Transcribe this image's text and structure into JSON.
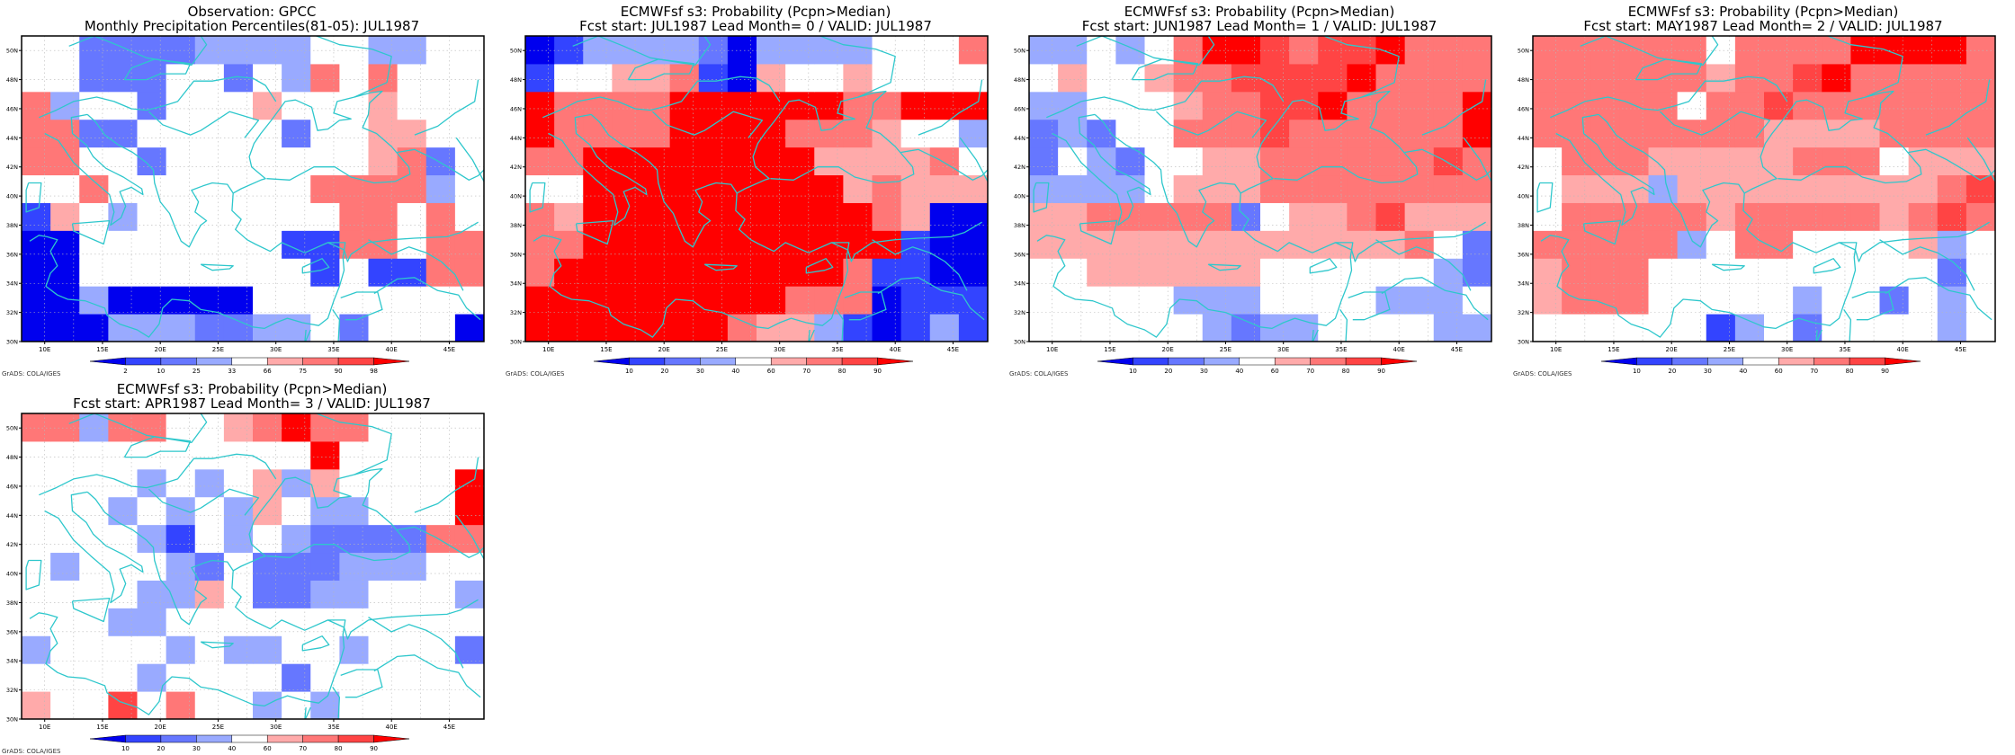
{
  "chart_data": [
    {
      "type": "heatmap",
      "title_line1": "Observation: GPCC",
      "title_line2": "Monthly Precipitation Percentiles(81-05): JUL1987",
      "x_ticks": [
        "10E",
        "15E",
        "20E",
        "25E",
        "30E",
        "35E",
        "40E",
        "45E"
      ],
      "y_ticks": [
        "30N",
        "32N",
        "34N",
        "36N",
        "38N",
        "40N",
        "42N",
        "44N",
        "46N",
        "48N",
        "50N"
      ],
      "colorbar": {
        "colors": [
          "#0000ee",
          "#3344ff",
          "#6677ff",
          "#99aaff",
          "#ffffff",
          "#ffaaaa",
          "#ff7777",
          "#ff4444",
          "#ff0000"
        ],
        "labels": [
          "2",
          "10",
          "25",
          "33",
          "66",
          "75",
          "90",
          "98"
        ]
      },
      "credit": "GrADS: COLA/IGES",
      "grid_values": [
        [
          0,
          0,
          0,
          3,
          3,
          3,
          2,
          2,
          3,
          3,
          4,
          2,
          4,
          4,
          4,
          0
        ],
        [
          0,
          0,
          3,
          0,
          0,
          0,
          0,
          0,
          4,
          4,
          4,
          4,
          4,
          4,
          4,
          4
        ],
        [
          0,
          0,
          4,
          4,
          4,
          4,
          4,
          4,
          4,
          4,
          1,
          4,
          1,
          1,
          6,
          6
        ],
        [
          0,
          0,
          4,
          4,
          4,
          4,
          4,
          4,
          4,
          1,
          1,
          6,
          6,
          4,
          6,
          6
        ],
        [
          1,
          5,
          4,
          3,
          4,
          4,
          4,
          4,
          4,
          4,
          4,
          6,
          6,
          4,
          6,
          4
        ],
        [
          4,
          4,
          6,
          4,
          4,
          4,
          4,
          4,
          4,
          4,
          6,
          6,
          6,
          6,
          3,
          4
        ],
        [
          6,
          6,
          4,
          4,
          2,
          4,
          4,
          4,
          4,
          4,
          4,
          4,
          5,
          6,
          2,
          4
        ],
        [
          6,
          6,
          2,
          2,
          4,
          4,
          4,
          4,
          4,
          2,
          4,
          4,
          5,
          5,
          4,
          4
        ],
        [
          6,
          3,
          4,
          4,
          2,
          4,
          4,
          4,
          5,
          4,
          4,
          4,
          5,
          4,
          4,
          4
        ],
        [
          4,
          4,
          2,
          2,
          2,
          4,
          4,
          2,
          4,
          3,
          6,
          4,
          6,
          4,
          4,
          4
        ],
        [
          4,
          4,
          2,
          2,
          2,
          2,
          3,
          3,
          3,
          3,
          4,
          4,
          3,
          3,
          4,
          4
        ]
      ]
    },
    {
      "type": "heatmap",
      "title_line1": "ECMWFsf s3: Probability (Pcpn>Median)",
      "title_line2": "Fcst start: JUL1987   Lead Month= 0 / VALID: JUL1987",
      "x_ticks": [
        "10E",
        "15E",
        "20E",
        "25E",
        "30E",
        "35E",
        "40E",
        "45E"
      ],
      "y_ticks": [
        "30N",
        "32N",
        "34N",
        "36N",
        "38N",
        "40N",
        "42N",
        "44N",
        "46N",
        "48N",
        "50N"
      ],
      "colorbar": {
        "colors": [
          "#0000ee",
          "#3344ff",
          "#6677ff",
          "#99aaff",
          "#ffffff",
          "#ffaaaa",
          "#ff7777",
          "#ff4444",
          "#ff0000"
        ],
        "labels": [
          "10",
          "20",
          "30",
          "40",
          "60",
          "70",
          "80",
          "90"
        ]
      },
      "credit": "GrADS: COLA/IGES",
      "grid_values": [
        [
          8,
          8,
          8,
          8,
          8,
          8,
          8,
          6,
          5,
          5,
          3,
          1,
          0,
          1,
          3,
          1
        ],
        [
          8,
          8,
          8,
          8,
          8,
          8,
          8,
          8,
          8,
          6,
          6,
          6,
          0,
          1,
          1,
          1
        ],
        [
          6,
          8,
          8,
          8,
          8,
          8,
          8,
          8,
          8,
          8,
          8,
          6,
          1,
          1,
          0,
          0
        ],
        [
          6,
          6,
          8,
          8,
          8,
          8,
          8,
          8,
          8,
          8,
          8,
          8,
          8,
          1,
          0,
          0
        ],
        [
          6,
          5,
          8,
          8,
          8,
          8,
          8,
          8,
          8,
          8,
          8,
          8,
          6,
          5,
          0,
          0
        ],
        [
          4,
          4,
          8,
          8,
          8,
          8,
          8,
          8,
          8,
          8,
          8,
          5,
          6,
          5,
          5,
          5
        ],
        [
          6,
          6,
          8,
          8,
          8,
          8,
          8,
          8,
          8,
          8,
          5,
          5,
          5,
          5,
          6,
          4
        ],
        [
          8,
          6,
          6,
          6,
          6,
          8,
          8,
          8,
          8,
          6,
          6,
          6,
          5,
          4,
          4,
          3
        ],
        [
          8,
          6,
          6,
          6,
          6,
          8,
          8,
          8,
          8,
          8,
          8,
          6,
          6,
          8,
          8,
          8
        ],
        [
          1,
          4,
          4,
          5,
          5,
          6,
          1,
          0,
          5,
          4,
          4,
          5,
          4,
          4,
          4,
          4
        ],
        [
          0,
          1,
          3,
          3,
          3,
          3,
          2,
          0,
          3,
          3,
          3,
          3,
          4,
          4,
          4,
          6
        ]
      ]
    },
    {
      "type": "heatmap",
      "title_line1": "ECMWFsf s3: Probability (Pcpn>Median)",
      "title_line2": "Fcst start: JUN1987   Lead Month= 1 / VALID: JUL1987",
      "x_ticks": [
        "10E",
        "15E",
        "20E",
        "25E",
        "30E",
        "35E",
        "40E",
        "45E"
      ],
      "y_ticks": [
        "30N",
        "32N",
        "34N",
        "36N",
        "38N",
        "40N",
        "42N",
        "44N",
        "46N",
        "48N",
        "50N"
      ],
      "colorbar": {
        "colors": [
          "#0000ee",
          "#3344ff",
          "#6677ff",
          "#99aaff",
          "#ffffff",
          "#ffaaaa",
          "#ff7777",
          "#ff4444",
          "#ff0000"
        ],
        "labels": [
          "10",
          "20",
          "30",
          "40",
          "60",
          "70",
          "80",
          "90"
        ]
      },
      "credit": "GrADS: COLA/IGES",
      "grid_values": [
        [
          4,
          4,
          4,
          4,
          4,
          4,
          3,
          2,
          3,
          3,
          4,
          4,
          4,
          4,
          3,
          3
        ],
        [
          4,
          4,
          4,
          4,
          4,
          3,
          3,
          3,
          4,
          4,
          4,
          4,
          3,
          3,
          3,
          4
        ],
        [
          4,
          4,
          5,
          5,
          5,
          5,
          5,
          5,
          4,
          4,
          4,
          4,
          4,
          4,
          3,
          2
        ],
        [
          5,
          5,
          5,
          5,
          5,
          5,
          5,
          5,
          5,
          5,
          5,
          5,
          5,
          6,
          4,
          2
        ],
        [
          5,
          5,
          6,
          6,
          6,
          6,
          6,
          2,
          4,
          5,
          5,
          6,
          7,
          5,
          5,
          5
        ],
        [
          3,
          3,
          3,
          3,
          4,
          5,
          5,
          5,
          6,
          6,
          6,
          6,
          6,
          6,
          6,
          6
        ],
        [
          2,
          4,
          3,
          2,
          4,
          4,
          5,
          5,
          6,
          6,
          6,
          6,
          6,
          6,
          7,
          6
        ],
        [
          2,
          3,
          2,
          4,
          4,
          6,
          6,
          6,
          7,
          6,
          6,
          6,
          6,
          6,
          6,
          8
        ],
        [
          3,
          3,
          4,
          4,
          4,
          5,
          6,
          6,
          7,
          7,
          8,
          6,
          6,
          6,
          6,
          8
        ],
        [
          4,
          5,
          4,
          4,
          5,
          6,
          6,
          7,
          7,
          7,
          7,
          8,
          6,
          6,
          6,
          6
        ],
        [
          3,
          3,
          4,
          3,
          4,
          6,
          8,
          8,
          7,
          6,
          7,
          7,
          8,
          6,
          6,
          6
        ]
      ]
    },
    {
      "type": "heatmap",
      "title_line1": "ECMWFsf s3: Probability (Pcpn>Median)",
      "title_line2": "Fcst start: MAY1987   Lead Month= 2 / VALID: JUL1987",
      "x_ticks": [
        "10E",
        "15E",
        "20E",
        "25E",
        "30E",
        "35E",
        "40E",
        "45E"
      ],
      "y_ticks": [
        "30N",
        "32N",
        "34N",
        "36N",
        "38N",
        "40N",
        "42N",
        "44N",
        "46N",
        "48N",
        "50N"
      ],
      "colorbar": {
        "colors": [
          "#0000ee",
          "#3344ff",
          "#6677ff",
          "#99aaff",
          "#ffffff",
          "#ffaaaa",
          "#ff7777",
          "#ff4444",
          "#ff0000"
        ],
        "labels": [
          "10",
          "20",
          "30",
          "40",
          "60",
          "70",
          "80",
          "90"
        ]
      },
      "credit": "GrADS: COLA/IGES",
      "grid_values": [
        [
          4,
          4,
          4,
          4,
          4,
          4,
          1,
          3,
          4,
          2,
          4,
          4,
          4,
          4,
          3,
          4
        ],
        [
          5,
          6,
          6,
          6,
          4,
          4,
          4,
          4,
          4,
          3,
          4,
          4,
          2,
          4,
          3,
          4
        ],
        [
          5,
          6,
          6,
          6,
          4,
          4,
          4,
          4,
          4,
          4,
          4,
          4,
          4,
          4,
          2,
          4
        ],
        [
          6,
          6,
          6,
          6,
          6,
          3,
          4,
          6,
          6,
          4,
          4,
          4,
          4,
          5,
          3,
          4
        ],
        [
          4,
          6,
          6,
          6,
          6,
          6,
          5,
          6,
          6,
          6,
          6,
          6,
          5,
          6,
          7,
          6
        ],
        [
          4,
          5,
          5,
          5,
          3,
          5,
          5,
          5,
          5,
          5,
          5,
          5,
          5,
          5,
          6,
          7
        ],
        [
          4,
          6,
          6,
          6,
          5,
          5,
          5,
          5,
          5,
          6,
          6,
          6,
          4,
          5,
          5,
          5
        ],
        [
          6,
          6,
          6,
          6,
          6,
          6,
          6,
          6,
          5,
          5,
          5,
          5,
          6,
          6,
          6,
          6
        ],
        [
          6,
          6,
          6,
          6,
          6,
          4,
          6,
          6,
          7,
          6,
          6,
          6,
          6,
          6,
          6,
          6
        ],
        [
          6,
          6,
          6,
          6,
          6,
          6,
          5,
          6,
          6,
          7,
          8,
          6,
          6,
          6,
          6,
          6
        ],
        [
          6,
          6,
          6,
          6,
          6,
          6,
          4,
          6,
          6,
          6,
          6,
          8,
          8,
          8,
          8,
          6
        ]
      ]
    },
    {
      "type": "heatmap",
      "title_line1": "ECMWFsf s3: Probability (Pcpn>Median)",
      "title_line2": "Fcst start: APR1987   Lead Month= 3 / VALID: JUL1987",
      "x_ticks": [
        "10E",
        "15E",
        "20E",
        "25E",
        "30E",
        "35E",
        "40E",
        "45E"
      ],
      "y_ticks": [
        "30N",
        "32N",
        "34N",
        "36N",
        "38N",
        "40N",
        "42N",
        "44N",
        "46N",
        "48N",
        "50N"
      ],
      "colorbar": {
        "colors": [
          "#0000ee",
          "#3344ff",
          "#6677ff",
          "#99aaff",
          "#ffffff",
          "#ffaaaa",
          "#ff7777",
          "#ff4444",
          "#ff0000"
        ],
        "labels": [
          "10",
          "20",
          "30",
          "40",
          "60",
          "70",
          "80",
          "90"
        ]
      },
      "credit": "GrADS: COLA/IGES",
      "grid_values": [
        [
          5,
          4,
          4,
          7,
          4,
          6,
          4,
          4,
          3,
          4,
          3,
          4,
          4,
          4,
          4,
          4
        ],
        [
          4,
          4,
          4,
          4,
          3,
          4,
          4,
          4,
          4,
          2,
          4,
          4,
          4,
          4,
          4,
          4
        ],
        [
          3,
          4,
          4,
          4,
          4,
          3,
          4,
          3,
          3,
          4,
          4,
          3,
          4,
          4,
          4,
          2
        ],
        [
          4,
          4,
          4,
          3,
          3,
          4,
          4,
          4,
          4,
          4,
          4,
          4,
          4,
          4,
          4,
          4
        ],
        [
          4,
          4,
          4,
          4,
          3,
          3,
          5,
          4,
          2,
          2,
          3,
          3,
          4,
          4,
          4,
          3
        ],
        [
          4,
          3,
          4,
          4,
          4,
          3,
          2,
          4,
          2,
          2,
          2,
          3,
          3,
          3,
          4,
          4
        ],
        [
          4,
          4,
          4,
          4,
          3,
          1,
          4,
          3,
          4,
          3,
          2,
          2,
          2,
          2,
          6,
          6
        ],
        [
          4,
          4,
          4,
          3,
          4,
          3,
          4,
          3,
          5,
          4,
          3,
          3,
          4,
          4,
          4,
          8
        ],
        [
          4,
          4,
          4,
          4,
          3,
          4,
          3,
          4,
          5,
          3,
          5,
          4,
          4,
          4,
          4,
          8
        ],
        [
          4,
          4,
          4,
          4,
          4,
          4,
          4,
          4,
          4,
          4,
          8,
          4,
          4,
          4,
          4,
          4
        ],
        [
          6,
          6,
          3,
          6,
          6,
          4,
          4,
          5,
          6,
          8,
          6,
          6,
          4,
          4,
          4,
          4
        ]
      ]
    }
  ]
}
